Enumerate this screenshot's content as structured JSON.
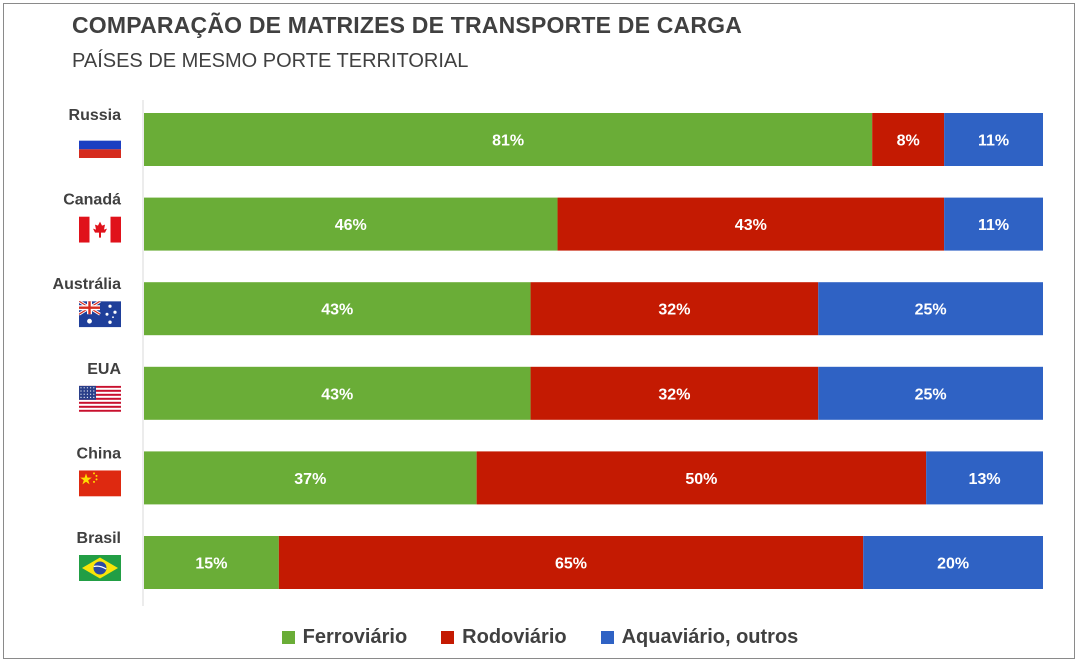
{
  "title": "COMPARAÇÃO DE MATRIZES DE TRANSPORTE DE CARGA",
  "subtitle": "PAÍSES DE MESMO PORTE TERRITORIAL",
  "chart_data": {
    "type": "bar",
    "orientation": "horizontal",
    "stacked": true,
    "normalized_percent": true,
    "title": "COMPARAÇÃO DE MATRIZES DE TRANSPORTE DE CARGA",
    "subtitle": "PAÍSES DE MESMO PORTE TERRITORIAL",
    "xlim": [
      0,
      100
    ],
    "grid": false,
    "legend_position": "bottom",
    "categories": [
      "Russia",
      "Canadá",
      "Austrália",
      "EUA",
      "China",
      "Brasil"
    ],
    "series": [
      {
        "name": "Ferroviário",
        "color": "#6aad37",
        "values": [
          81,
          46,
          43,
          43,
          37,
          15
        ]
      },
      {
        "name": "Rodoviário",
        "color": "#c41a02",
        "values": [
          8,
          43,
          32,
          32,
          50,
          65
        ]
      },
      {
        "name": "Aquaviário, outros",
        "color": "#2f62c4",
        "values": [
          11,
          11,
          25,
          25,
          13,
          20
        ]
      }
    ],
    "data_labels": [
      [
        "81%",
        "8%",
        "11%"
      ],
      [
        "46%",
        "43%",
        "11%"
      ],
      [
        "43%",
        "32%",
        "25%"
      ],
      [
        "43%",
        "32%",
        "25%"
      ],
      [
        "37%",
        "50%",
        "13%"
      ],
      [
        "15%",
        "65%",
        "20%"
      ]
    ],
    "flag_icons": [
      "russia-flag-icon",
      "canada-flag-icon",
      "australia-flag-icon",
      "usa-flag-icon",
      "china-flag-icon",
      "brazil-flag-icon"
    ]
  }
}
